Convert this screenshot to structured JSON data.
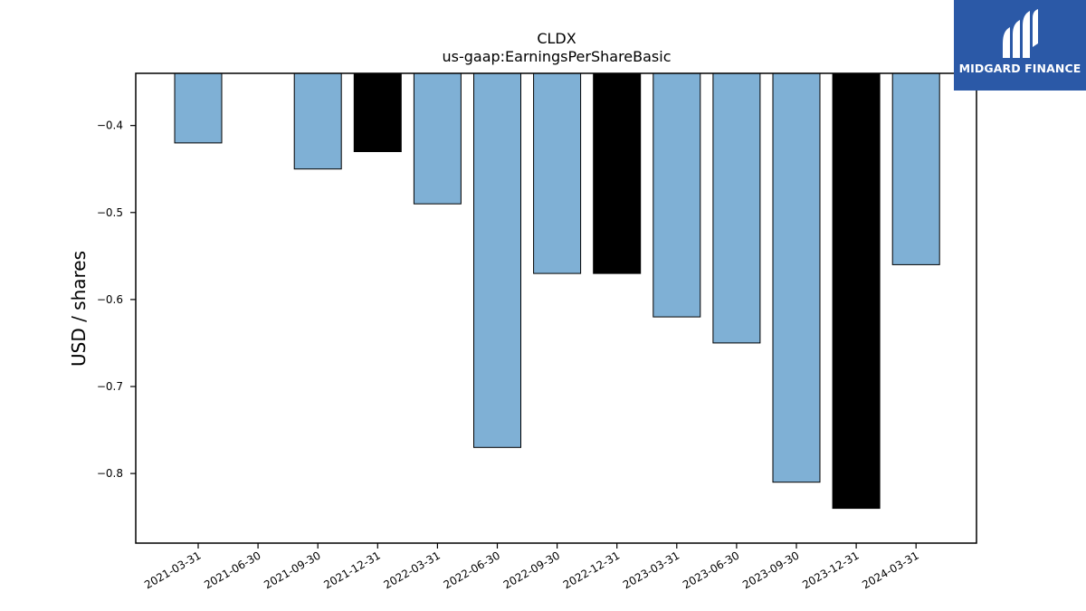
{
  "chart_data": {
    "type": "bar",
    "title": "CLDX",
    "subtitle": "us-gaap:EarningsPerShareBasic",
    "xlabel": "",
    "ylabel": "USD / shares",
    "categories": [
      "2021-03-31",
      "2021-06-30",
      "2021-09-30",
      "2021-12-31",
      "2022-03-31",
      "2022-06-30",
      "2022-09-30",
      "2022-12-31",
      "2023-03-31",
      "2023-06-30",
      "2023-09-30",
      "2023-12-31",
      "2024-03-31"
    ],
    "values": [
      -0.42,
      null,
      -0.45,
      -0.43,
      -0.49,
      -0.77,
      -0.57,
      -0.57,
      -0.62,
      -0.65,
      -0.81,
      -0.84,
      -0.56
    ],
    "highlight": [
      false,
      false,
      false,
      true,
      false,
      false,
      false,
      true,
      false,
      false,
      false,
      true,
      false
    ],
    "ylim": [
      -0.88,
      -0.34
    ],
    "yticks": [
      -0.4,
      -0.5,
      -0.6,
      -0.7,
      -0.8
    ],
    "ytick_labels": [
      "−0.4",
      "−0.5",
      "−0.6",
      "−0.7",
      "−0.8"
    ],
    "grid": false,
    "colors": {
      "bar": "#7fb0d5",
      "highlight": "#000000",
      "edge": "#000000"
    }
  },
  "brand": {
    "name": "MIDGARD FINANCE",
    "logo_icon": "midgard-logo-icon",
    "color": "#2b59a7"
  }
}
